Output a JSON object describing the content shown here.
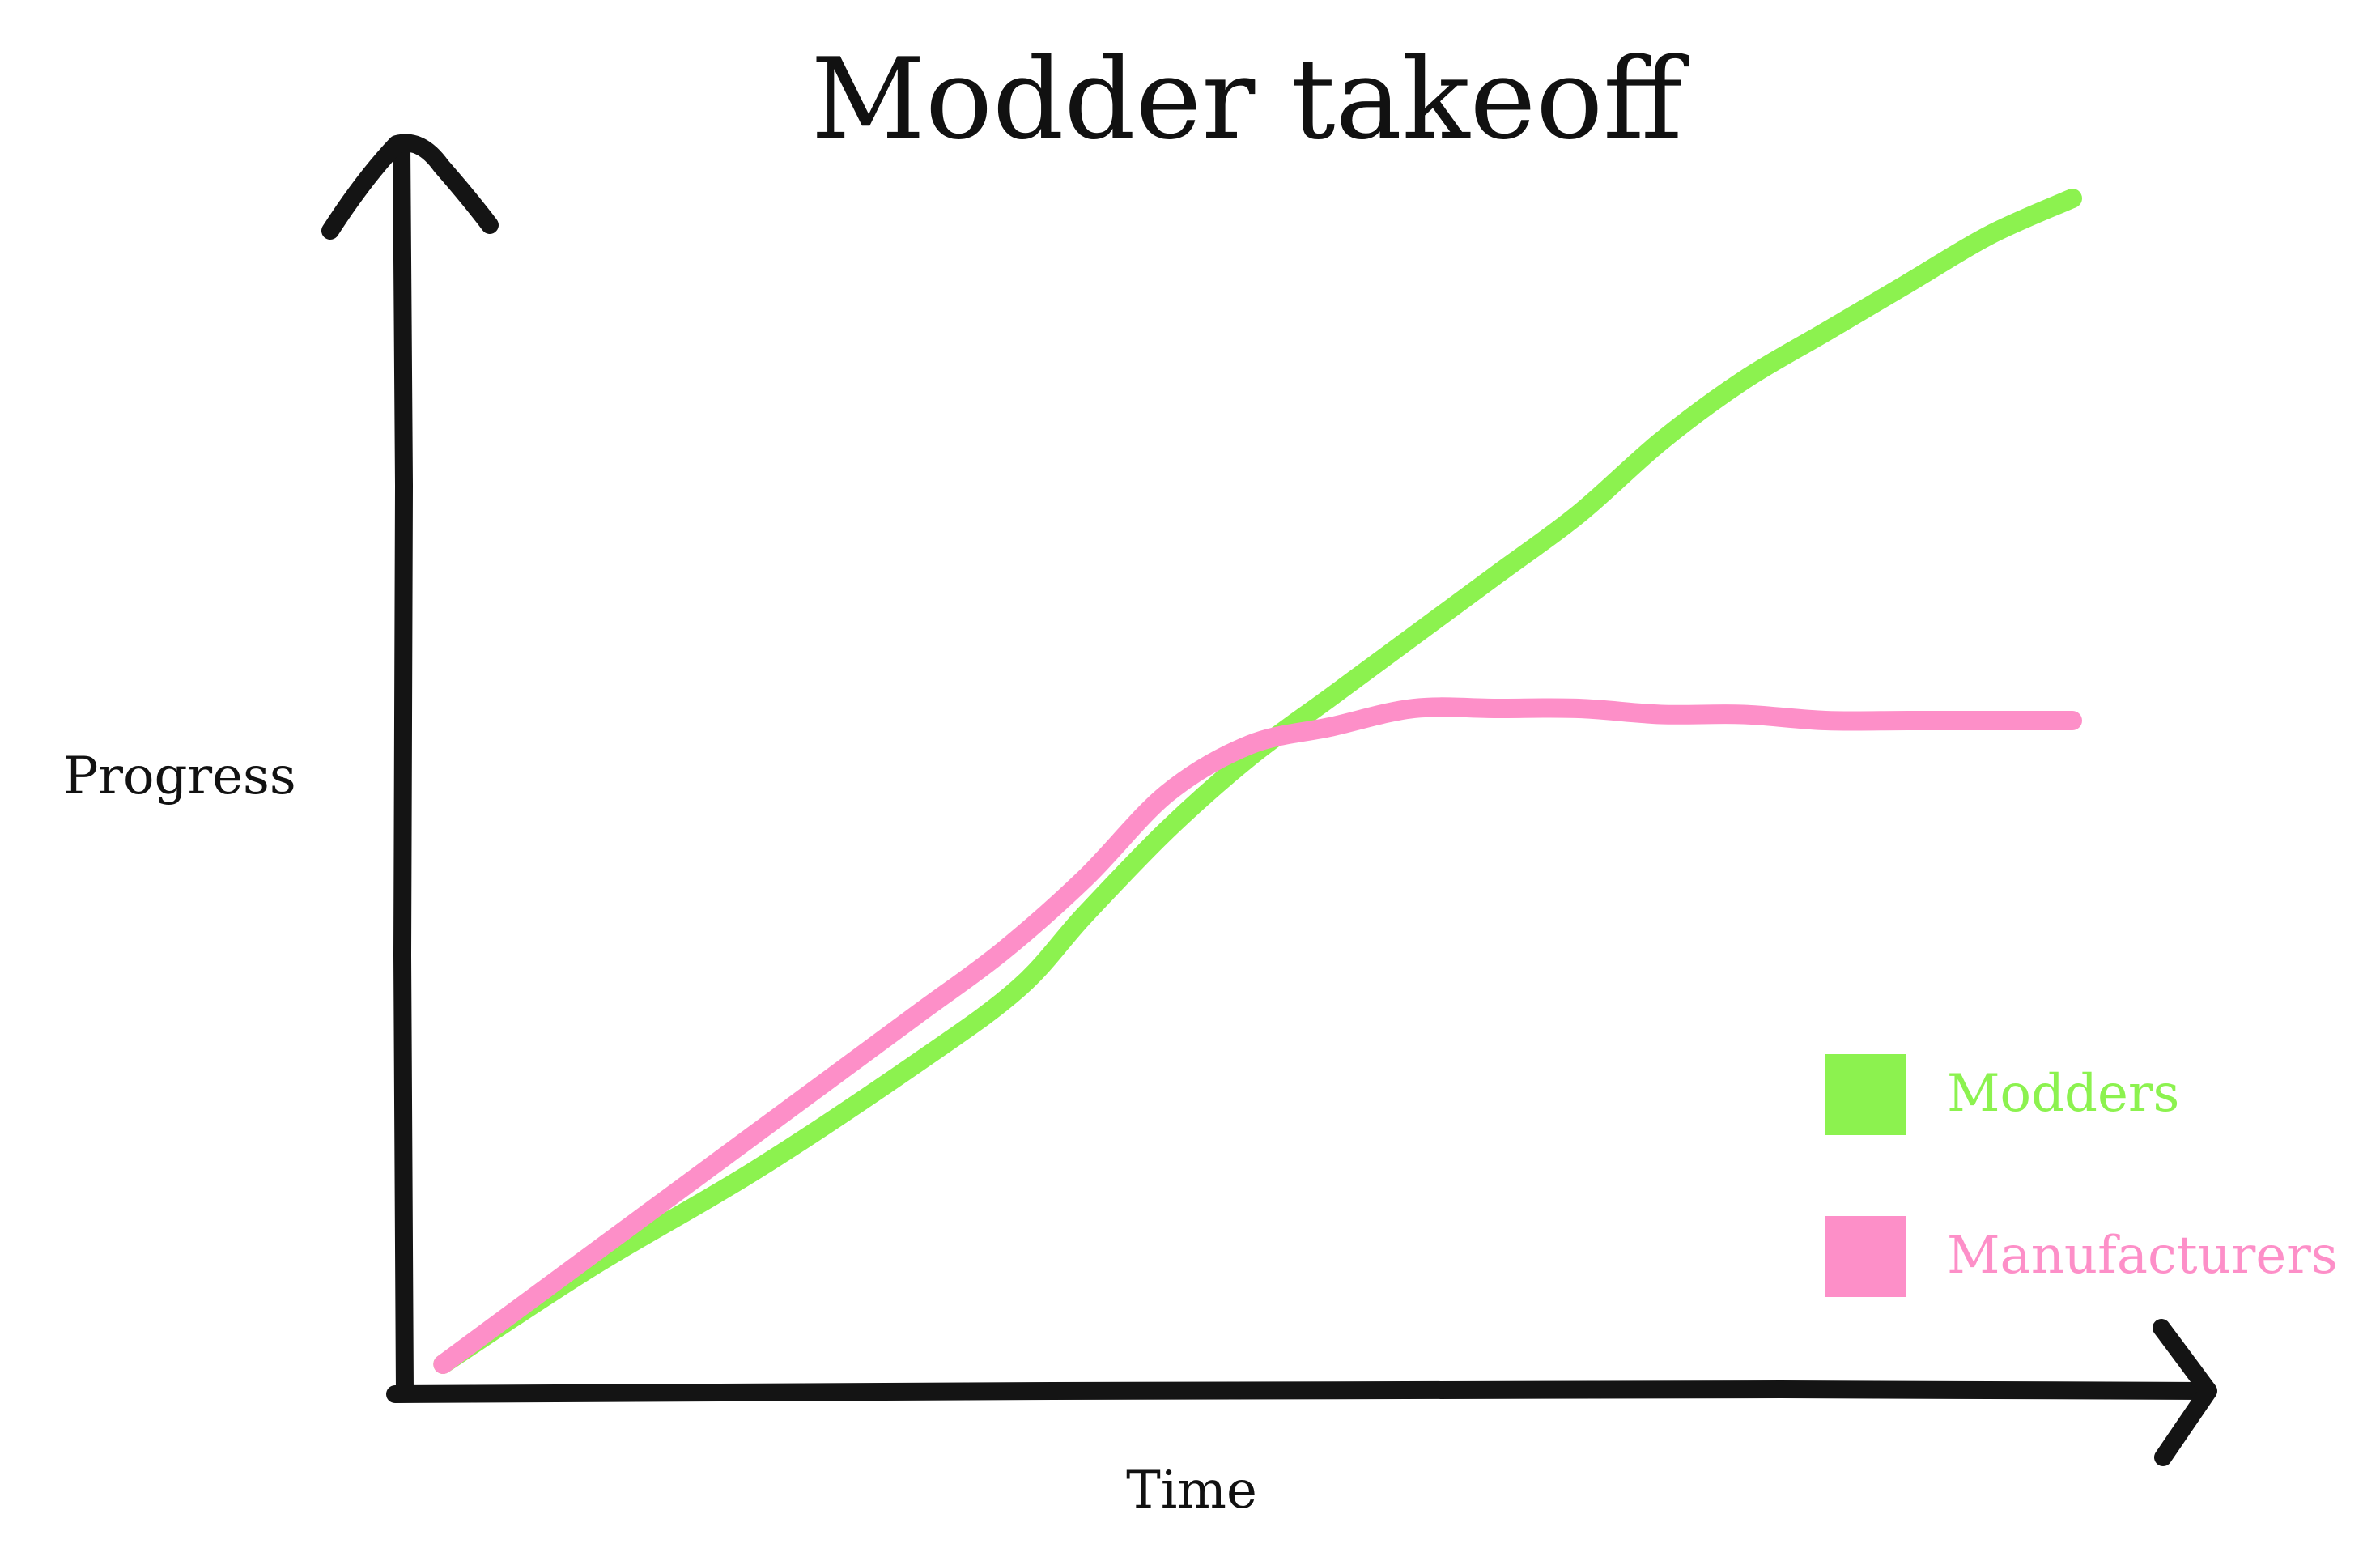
{
  "chart_data": {
    "type": "line",
    "title": "Modder takeoff",
    "xlabel": "Time",
    "ylabel": "Progress",
    "xlim": [
      0,
      100
    ],
    "ylim": [
      0,
      100
    ],
    "grid": false,
    "legend_position": "bottom-right",
    "series": [
      {
        "name": "Modders",
        "color": "#8cf24f",
        "x": [
          1,
          10,
          20,
          30,
          36,
          40,
          45,
          50,
          55,
          60,
          65,
          70,
          75,
          80,
          85,
          90,
          95,
          100
        ],
        "y": [
          1,
          9,
          17,
          26,
          32,
          38,
          45,
          51,
          56,
          61,
          66,
          71,
          77,
          82,
          86,
          90,
          94,
          97
        ]
      },
      {
        "name": "Manufacturers",
        "color": "#fd8fc8",
        "x": [
          1,
          10,
          15,
          20,
          25,
          30,
          35,
          40,
          45,
          50,
          55,
          60,
          65,
          70,
          75,
          80,
          85,
          90,
          95,
          100
        ],
        "y": [
          1,
          10,
          15,
          20,
          25,
          30,
          35,
          41,
          48,
          52,
          53.5,
          55,
          55,
          55,
          54.5,
          54.5,
          54,
          54,
          54,
          54
        ]
      }
    ]
  }
}
